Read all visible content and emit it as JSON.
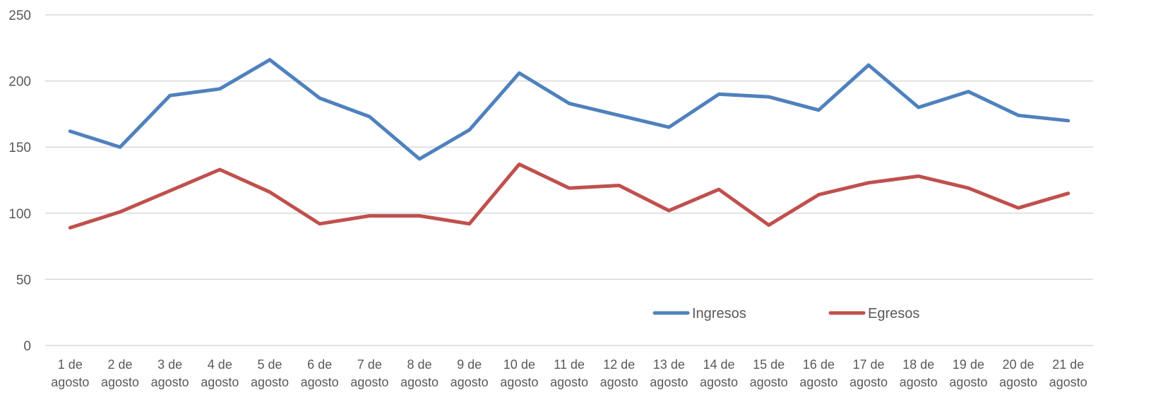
{
  "chart_data": {
    "type": "line",
    "title": "",
    "xlabel": "",
    "ylabel": "",
    "ylim": [
      0,
      250
    ],
    "yticks": [
      0,
      50,
      100,
      150,
      200,
      250
    ],
    "grid": true,
    "legend_position": "bottom-right",
    "categories": [
      [
        "1 de",
        "agosto"
      ],
      [
        "2 de",
        "agosto"
      ],
      [
        "3 de",
        "agosto"
      ],
      [
        "4 de",
        "agosto"
      ],
      [
        "5 de",
        "agosto"
      ],
      [
        "6 de",
        "agosto"
      ],
      [
        "7 de",
        "agosto"
      ],
      [
        "8 de",
        "agosto"
      ],
      [
        "9 de",
        "agosto"
      ],
      [
        "10 de",
        "agosto"
      ],
      [
        "11 de",
        "agosto"
      ],
      [
        "12 de",
        "agosto"
      ],
      [
        "13 de",
        "agosto"
      ],
      [
        "14 de",
        "agosto"
      ],
      [
        "15 de",
        "agosto"
      ],
      [
        "16 de",
        "agosto"
      ],
      [
        "17 de",
        "agosto"
      ],
      [
        "18 de",
        "agosto"
      ],
      [
        "19 de",
        "agosto"
      ],
      [
        "20 de",
        "agosto"
      ],
      [
        "21 de",
        "agosto"
      ]
    ],
    "series": [
      {
        "name": "Ingresos",
        "color": "#4F81BD",
        "values": [
          162,
          150,
          189,
          194,
          216,
          187,
          173,
          141,
          163,
          206,
          183,
          174,
          165,
          190,
          188,
          178,
          212,
          180,
          192,
          174,
          170
        ]
      },
      {
        "name": "Egresos",
        "color": "#C0504D",
        "values": [
          89,
          101,
          117,
          133,
          116,
          92,
          98,
          98,
          92,
          137,
          119,
          121,
          102,
          118,
          91,
          114,
          123,
          128,
          119,
          104,
          115
        ]
      }
    ],
    "colors": {
      "gridline": "#D9D9D9",
      "axis_text": "#595959"
    }
  }
}
